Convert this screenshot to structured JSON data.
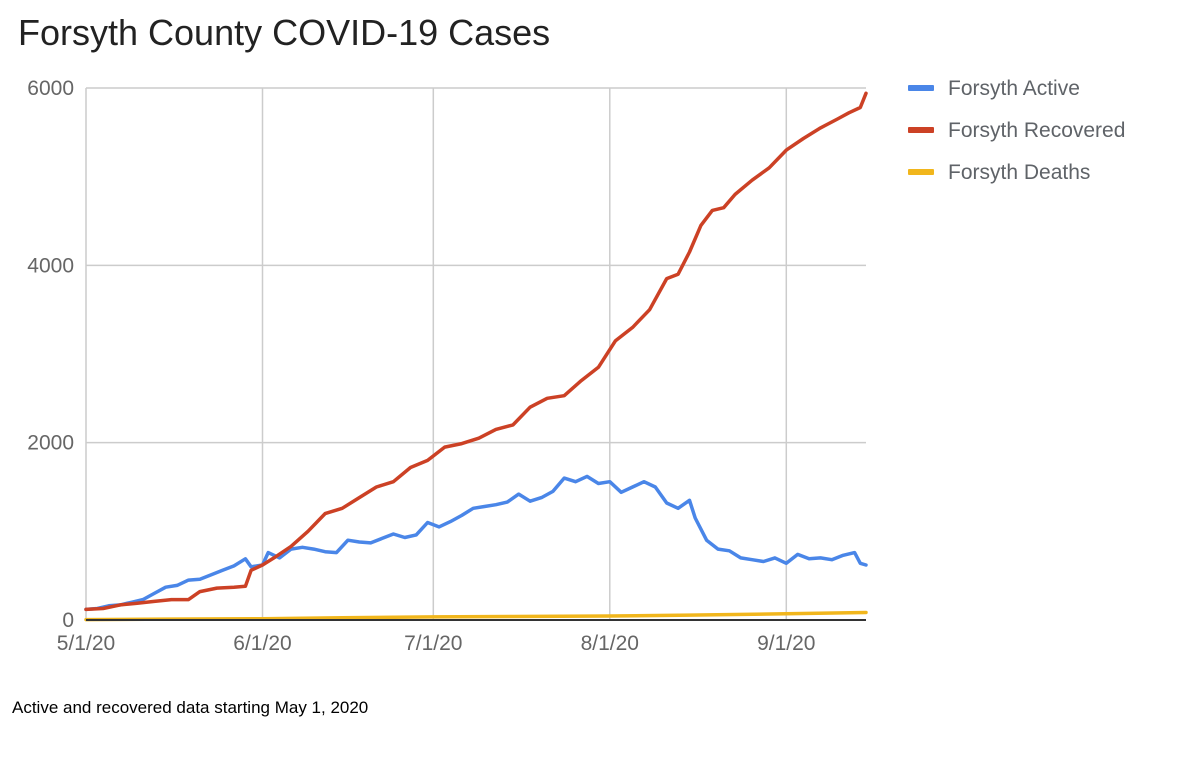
{
  "title": "Forsyth County COVID-19 Cases",
  "caption": "Active and recovered data starting May 1, 2020",
  "chart_data": {
    "type": "line",
    "title": "Forsyth County COVID-19 Cases",
    "xlabel": "",
    "ylabel": "",
    "x_start": "2020-05-01",
    "x_end": "2020-09-15",
    "ylim": [
      0,
      6000
    ],
    "y_ticks": [
      0,
      2000,
      4000,
      6000
    ],
    "x_ticks": [
      {
        "date": "2020-05-01",
        "label": "5/1/20"
      },
      {
        "date": "2020-06-01",
        "label": "6/1/20"
      },
      {
        "date": "2020-07-01",
        "label": "7/1/20"
      },
      {
        "date": "2020-08-01",
        "label": "8/1/20"
      },
      {
        "date": "2020-09-01",
        "label": "9/1/20"
      }
    ],
    "grid": true,
    "legend_position": "right",
    "series": [
      {
        "name": "Forsyth Active",
        "color": "#4a86e8",
        "points": [
          [
            "2020-05-01",
            120
          ],
          [
            "2020-05-03",
            130
          ],
          [
            "2020-05-05",
            160
          ],
          [
            "2020-05-07",
            170
          ],
          [
            "2020-05-09",
            200
          ],
          [
            "2020-05-11",
            230
          ],
          [
            "2020-05-13",
            300
          ],
          [
            "2020-05-15",
            370
          ],
          [
            "2020-05-17",
            390
          ],
          [
            "2020-05-19",
            450
          ],
          [
            "2020-05-21",
            460
          ],
          [
            "2020-05-23",
            510
          ],
          [
            "2020-05-25",
            560
          ],
          [
            "2020-05-27",
            610
          ],
          [
            "2020-05-29",
            690
          ],
          [
            "2020-05-30",
            600
          ],
          [
            "2020-06-01",
            620
          ],
          [
            "2020-06-02",
            760
          ],
          [
            "2020-06-04",
            700
          ],
          [
            "2020-06-06",
            800
          ],
          [
            "2020-06-08",
            820
          ],
          [
            "2020-06-10",
            800
          ],
          [
            "2020-06-12",
            770
          ],
          [
            "2020-06-14",
            760
          ],
          [
            "2020-06-16",
            900
          ],
          [
            "2020-06-18",
            880
          ],
          [
            "2020-06-20",
            870
          ],
          [
            "2020-06-22",
            920
          ],
          [
            "2020-06-24",
            970
          ],
          [
            "2020-06-26",
            930
          ],
          [
            "2020-06-28",
            960
          ],
          [
            "2020-06-30",
            1100
          ],
          [
            "2020-07-02",
            1050
          ],
          [
            "2020-07-04",
            1110
          ],
          [
            "2020-07-06",
            1180
          ],
          [
            "2020-07-08",
            1260
          ],
          [
            "2020-07-10",
            1280
          ],
          [
            "2020-07-12",
            1300
          ],
          [
            "2020-07-14",
            1330
          ],
          [
            "2020-07-16",
            1420
          ],
          [
            "2020-07-18",
            1340
          ],
          [
            "2020-07-20",
            1380
          ],
          [
            "2020-07-22",
            1450
          ],
          [
            "2020-07-24",
            1600
          ],
          [
            "2020-07-26",
            1560
          ],
          [
            "2020-07-28",
            1620
          ],
          [
            "2020-07-30",
            1540
          ],
          [
            "2020-08-01",
            1560
          ],
          [
            "2020-08-03",
            1440
          ],
          [
            "2020-08-05",
            1500
          ],
          [
            "2020-08-07",
            1560
          ],
          [
            "2020-08-09",
            1500
          ],
          [
            "2020-08-11",
            1320
          ],
          [
            "2020-08-13",
            1260
          ],
          [
            "2020-08-15",
            1350
          ],
          [
            "2020-08-16",
            1150
          ],
          [
            "2020-08-18",
            900
          ],
          [
            "2020-08-20",
            800
          ],
          [
            "2020-08-22",
            780
          ],
          [
            "2020-08-24",
            700
          ],
          [
            "2020-08-26",
            680
          ],
          [
            "2020-08-28",
            660
          ],
          [
            "2020-08-30",
            700
          ],
          [
            "2020-09-01",
            640
          ],
          [
            "2020-09-03",
            740
          ],
          [
            "2020-09-05",
            690
          ],
          [
            "2020-09-07",
            700
          ],
          [
            "2020-09-09",
            680
          ],
          [
            "2020-09-11",
            730
          ],
          [
            "2020-09-13",
            760
          ],
          [
            "2020-09-14",
            640
          ],
          [
            "2020-09-15",
            620
          ]
        ]
      },
      {
        "name": "Forsyth Recovered",
        "color": "#cc4125",
        "points": [
          [
            "2020-05-01",
            120
          ],
          [
            "2020-05-04",
            130
          ],
          [
            "2020-05-07",
            170
          ],
          [
            "2020-05-10",
            190
          ],
          [
            "2020-05-13",
            210
          ],
          [
            "2020-05-16",
            230
          ],
          [
            "2020-05-19",
            230
          ],
          [
            "2020-05-21",
            320
          ],
          [
            "2020-05-24",
            360
          ],
          [
            "2020-05-27",
            370
          ],
          [
            "2020-05-29",
            380
          ],
          [
            "2020-05-30",
            560
          ],
          [
            "2020-06-01",
            620
          ],
          [
            "2020-06-03",
            700
          ],
          [
            "2020-06-06",
            830
          ],
          [
            "2020-06-09",
            1000
          ],
          [
            "2020-06-12",
            1200
          ],
          [
            "2020-06-15",
            1260
          ],
          [
            "2020-06-18",
            1380
          ],
          [
            "2020-06-21",
            1500
          ],
          [
            "2020-06-24",
            1560
          ],
          [
            "2020-06-27",
            1720
          ],
          [
            "2020-06-30",
            1800
          ],
          [
            "2020-07-03",
            1950
          ],
          [
            "2020-07-06",
            1990
          ],
          [
            "2020-07-09",
            2050
          ],
          [
            "2020-07-12",
            2150
          ],
          [
            "2020-07-15",
            2200
          ],
          [
            "2020-07-18",
            2400
          ],
          [
            "2020-07-21",
            2500
          ],
          [
            "2020-07-24",
            2530
          ],
          [
            "2020-07-27",
            2700
          ],
          [
            "2020-07-30",
            2850
          ],
          [
            "2020-08-02",
            3150
          ],
          [
            "2020-08-05",
            3300
          ],
          [
            "2020-08-08",
            3500
          ],
          [
            "2020-08-11",
            3850
          ],
          [
            "2020-08-13",
            3900
          ],
          [
            "2020-08-15",
            4150
          ],
          [
            "2020-08-17",
            4450
          ],
          [
            "2020-08-19",
            4620
          ],
          [
            "2020-08-21",
            4650
          ],
          [
            "2020-08-23",
            4800
          ],
          [
            "2020-08-26",
            4960
          ],
          [
            "2020-08-29",
            5100
          ],
          [
            "2020-09-01",
            5300
          ],
          [
            "2020-09-04",
            5430
          ],
          [
            "2020-09-07",
            5550
          ],
          [
            "2020-09-10",
            5650
          ],
          [
            "2020-09-12",
            5720
          ],
          [
            "2020-09-14",
            5780
          ],
          [
            "2020-09-15",
            5940
          ]
        ]
      },
      {
        "name": "Forsyth Deaths",
        "color": "#f1b61c",
        "points": [
          [
            "2020-05-01",
            5
          ],
          [
            "2020-05-15",
            10
          ],
          [
            "2020-06-01",
            15
          ],
          [
            "2020-06-15",
            25
          ],
          [
            "2020-07-01",
            35
          ],
          [
            "2020-07-15",
            40
          ],
          [
            "2020-08-01",
            45
          ],
          [
            "2020-08-15",
            55
          ],
          [
            "2020-09-01",
            70
          ],
          [
            "2020-09-15",
            85
          ]
        ]
      }
    ]
  }
}
